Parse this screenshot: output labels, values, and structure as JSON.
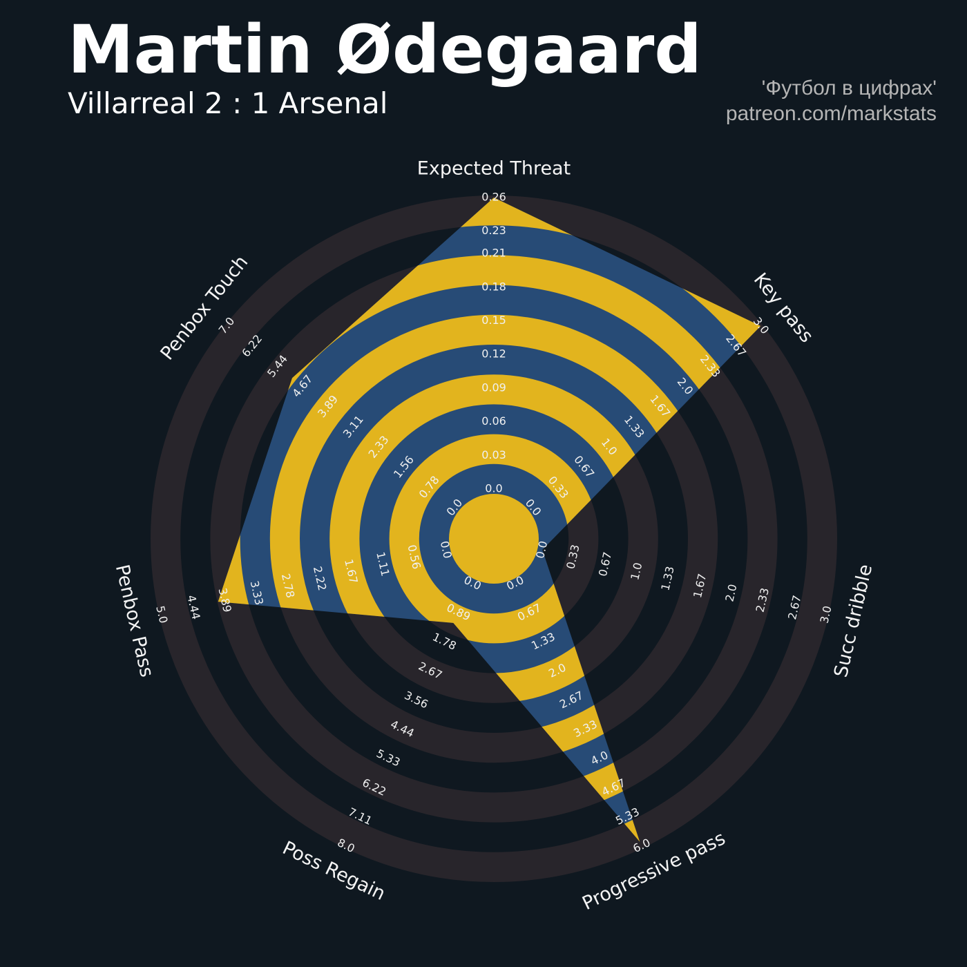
{
  "chart_data": {
    "type": "radar",
    "title": "Martin Ødegaard",
    "subtitle": "Villarreal 2 : 1 Arsenal",
    "credits": [
      "'Футбол в цифрах'",
      "patreon.com/markstats"
    ],
    "parameters": [
      "Expected Threat",
      "Key pass",
      "Succ dribble",
      "Progressive pass",
      "Poss Regain",
      "Penbox Pass",
      "Penbox Touch"
    ],
    "values": [
      0.26,
      3,
      0,
      5.9,
      1.2,
      4,
      5
    ],
    "lims": [
      [
        0,
        0.26
      ],
      [
        0,
        3
      ],
      [
        0,
        3
      ],
      [
        0,
        6
      ],
      [
        0,
        8
      ],
      [
        0,
        5
      ],
      [
        0,
        7
      ]
    ],
    "ticks": [
      [
        {
          "value": 0,
          "label": "0.0"
        },
        0.03,
        0.06,
        0.09,
        0.12,
        0.15,
        0.18,
        0.21,
        0.23,
        0.26
      ],
      [
        {
          "value": 0,
          "label": "0.0"
        },
        0.33,
        0.67,
        {
          "value": 1,
          "label": "1.0"
        },
        1.33,
        1.67,
        {
          "value": 2,
          "label": "2.0"
        },
        2.33,
        2.67,
        {
          "value": 3,
          "label": "3.0"
        }
      ],
      [
        {
          "value": 0,
          "label": "0.0"
        },
        0.33,
        0.67,
        {
          "value": 1,
          "label": "1.0"
        },
        1.33,
        1.67,
        {
          "value": 2,
          "label": "2.0"
        },
        2.33,
        2.67,
        {
          "value": 3,
          "label": "3.0"
        }
      ],
      [
        {
          "value": 0,
          "label": "0.0"
        },
        0.67,
        1.33,
        {
          "value": 2,
          "label": "2.0"
        },
        2.67,
        3.33,
        {
          "value": 4,
          "label": "4.0"
        },
        4.67,
        5.33,
        {
          "value": 6,
          "label": "6.0"
        }
      ],
      [
        {
          "value": 0,
          "label": "0.0"
        },
        0.89,
        1.78,
        2.67,
        3.56,
        4.44,
        5.33,
        6.22,
        7.11,
        {
          "value": 8,
          "label": "8.0"
        }
      ],
      [
        {
          "value": 0,
          "label": "0.0"
        },
        0.56,
        1.11,
        1.67,
        2.22,
        2.78,
        3.33,
        3.89,
        4.44,
        {
          "value": 5,
          "label": "5.0"
        }
      ],
      [
        {
          "value": 0,
          "label": "0.0"
        },
        0.78,
        1.56,
        2.33,
        3.11,
        3.89,
        4.67,
        5.44,
        6.22,
        {
          "value": 7,
          "label": "7.0"
        }
      ]
    ],
    "polygon_color": "#274b76",
    "ring_color": "#e2b41e",
    "background_ring_color": "#28252b"
  }
}
